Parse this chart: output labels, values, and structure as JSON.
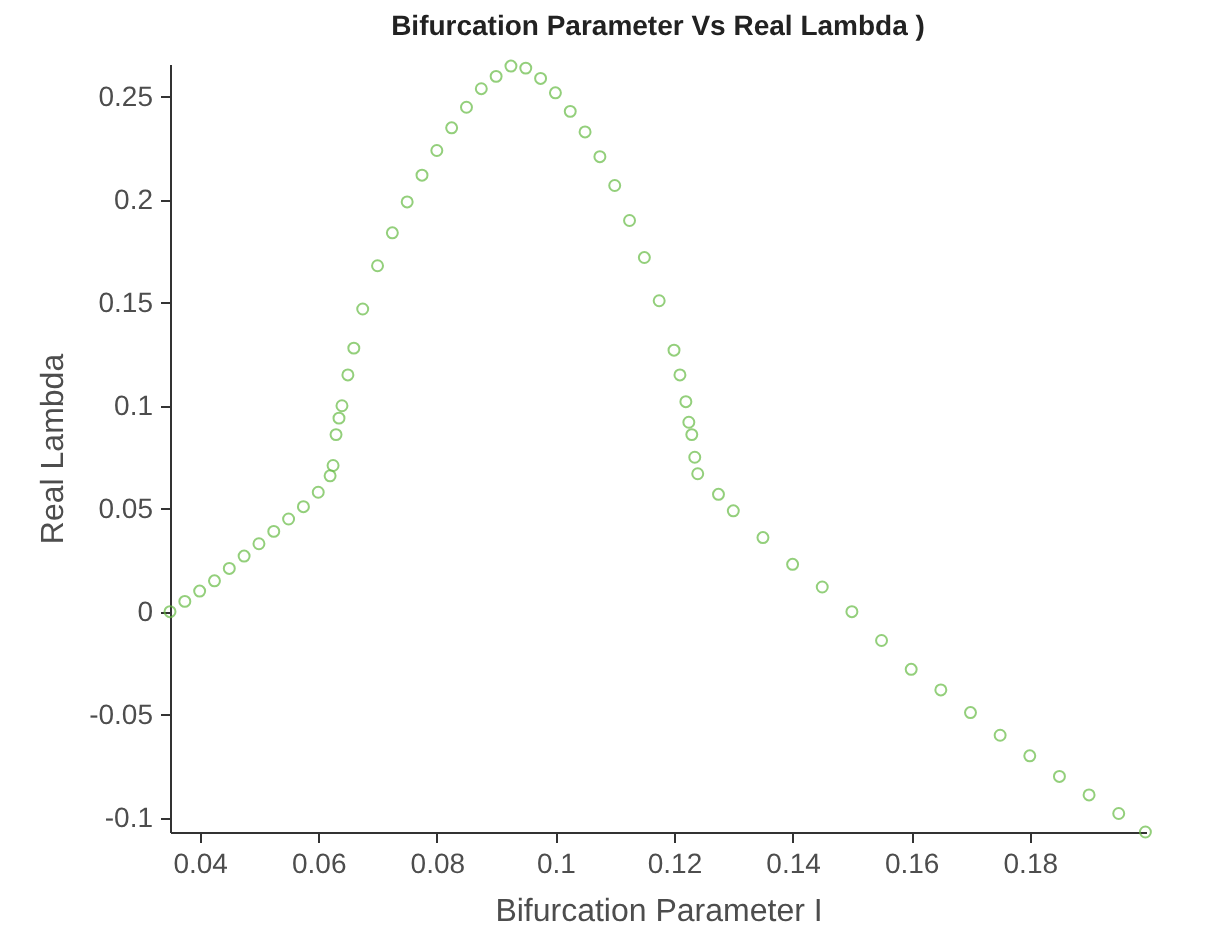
{
  "chart_data": {
    "type": "scatter",
    "title": "Bifurcation Parameter Vs Real Lambda )",
    "xlabel": "Bifurcation Parameter I",
    "ylabel": "Real Lambda",
    "marker": "circle",
    "xlim": [
      0.035,
      0.1996
    ],
    "ylim": [
      -0.107,
      0.266
    ],
    "xticks": [
      0.04,
      0.06,
      0.08,
      0.1,
      0.12,
      0.14,
      0.16,
      0.18
    ],
    "yticks": [
      -0.1,
      -0.05,
      0,
      0.05,
      0.1,
      0.15,
      0.2,
      0.25
    ],
    "series": [
      {
        "color": "#66bb44",
        "x": [
          0.035,
          0.0375,
          0.04,
          0.0425,
          0.045,
          0.0475,
          0.05,
          0.0525,
          0.055,
          0.0575,
          0.06,
          0.062,
          0.0625,
          0.063,
          0.0635,
          0.064,
          0.065,
          0.066,
          0.0675,
          0.07,
          0.0725,
          0.075,
          0.0775,
          0.08,
          0.0825,
          0.085,
          0.0875,
          0.09,
          0.0925,
          0.095,
          0.0975,
          0.1,
          0.1025,
          0.105,
          0.1075,
          0.11,
          0.1125,
          0.115,
          0.1175,
          0.12,
          0.121,
          0.122,
          0.1225,
          0.123,
          0.1235,
          0.124,
          0.1275,
          0.13,
          0.135,
          0.14,
          0.145,
          0.15,
          0.155,
          0.16,
          0.165,
          0.17,
          0.175,
          0.18,
          0.185,
          0.19,
          0.195,
          0.1995
        ],
        "values": [
          0,
          0.005,
          0.01,
          0.015,
          0.021,
          0.027,
          0.033,
          0.039,
          0.045,
          0.051,
          0.058,
          0.066,
          0.071,
          0.086,
          0.094,
          0.1,
          0.115,
          0.128,
          0.147,
          0.168,
          0.184,
          0.199,
          0.212,
          0.224,
          0.235,
          0.245,
          0.254,
          0.26,
          0.265,
          0.264,
          0.259,
          0.252,
          0.243,
          0.233,
          0.221,
          0.207,
          0.19,
          0.172,
          0.151,
          0.127,
          0.115,
          0.102,
          0.092,
          0.086,
          0.075,
          0.067,
          0.057,
          0.049,
          0.036,
          0.023,
          0.012,
          0,
          -0.014,
          -0.028,
          -0.038,
          -0.049,
          -0.06,
          -0.07,
          -0.08,
          -0.089,
          -0.098,
          -0.107
        ]
      }
    ]
  }
}
